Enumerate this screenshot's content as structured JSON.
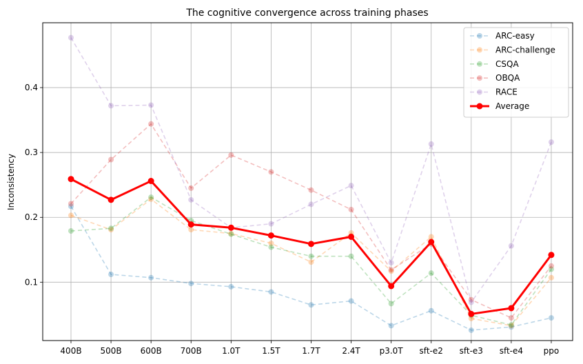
{
  "chart_data": {
    "type": "line",
    "title": "The cognitive convergence across training phases",
    "xlabel": "",
    "ylabel": "Inconsistency",
    "categories": [
      "400B",
      "500B",
      "600B",
      "700B",
      "1.0T",
      "1.5T",
      "1.7T",
      "2.4T",
      "p3.0T",
      "sft-e2",
      "sft-e3",
      "sft-e4",
      "ppo"
    ],
    "ylim": [
      0.01,
      0.5
    ],
    "yticks": [
      0.1,
      0.2,
      0.3,
      0.4
    ],
    "grid": true,
    "legend_position": "top-right",
    "series": [
      {
        "name": "ARC-easy",
        "color": "#1f77b4",
        "style": "dashed-faint",
        "values": [
          0.217,
          0.112,
          0.107,
          0.098,
          0.093,
          0.085,
          0.065,
          0.071,
          0.033,
          0.056,
          0.026,
          0.031,
          0.045
        ]
      },
      {
        "name": "ARC-challenge",
        "color": "#ff7f0e",
        "style": "dashed-faint",
        "values": [
          0.203,
          0.181,
          0.228,
          0.181,
          0.175,
          0.16,
          0.131,
          0.176,
          0.117,
          0.17,
          0.044,
          0.033,
          0.107
        ]
      },
      {
        "name": "CSQA",
        "color": "#2ca02c",
        "style": "dashed-faint",
        "values": [
          0.179,
          0.183,
          0.231,
          0.195,
          0.174,
          0.154,
          0.14,
          0.14,
          0.067,
          0.114,
          0.049,
          0.034,
          0.12
        ]
      },
      {
        "name": "OBQA",
        "color": "#d62728",
        "style": "dashed-faint",
        "values": [
          0.221,
          0.289,
          0.344,
          0.245,
          0.296,
          0.27,
          0.242,
          0.212,
          0.119,
          0.159,
          0.073,
          0.045,
          0.125
        ]
      },
      {
        "name": "RACE",
        "color": "#9467bd",
        "style": "dashed-faint",
        "values": [
          0.477,
          0.372,
          0.373,
          0.227,
          0.184,
          0.19,
          0.22,
          0.249,
          0.13,
          0.313,
          0.069,
          0.156,
          0.316
        ]
      },
      {
        "name": "Average",
        "color": "#ff0000",
        "style": "solid-bold",
        "values": [
          0.259,
          0.227,
          0.256,
          0.189,
          0.184,
          0.172,
          0.159,
          0.17,
          0.094,
          0.162,
          0.051,
          0.06,
          0.142
        ]
      }
    ]
  }
}
